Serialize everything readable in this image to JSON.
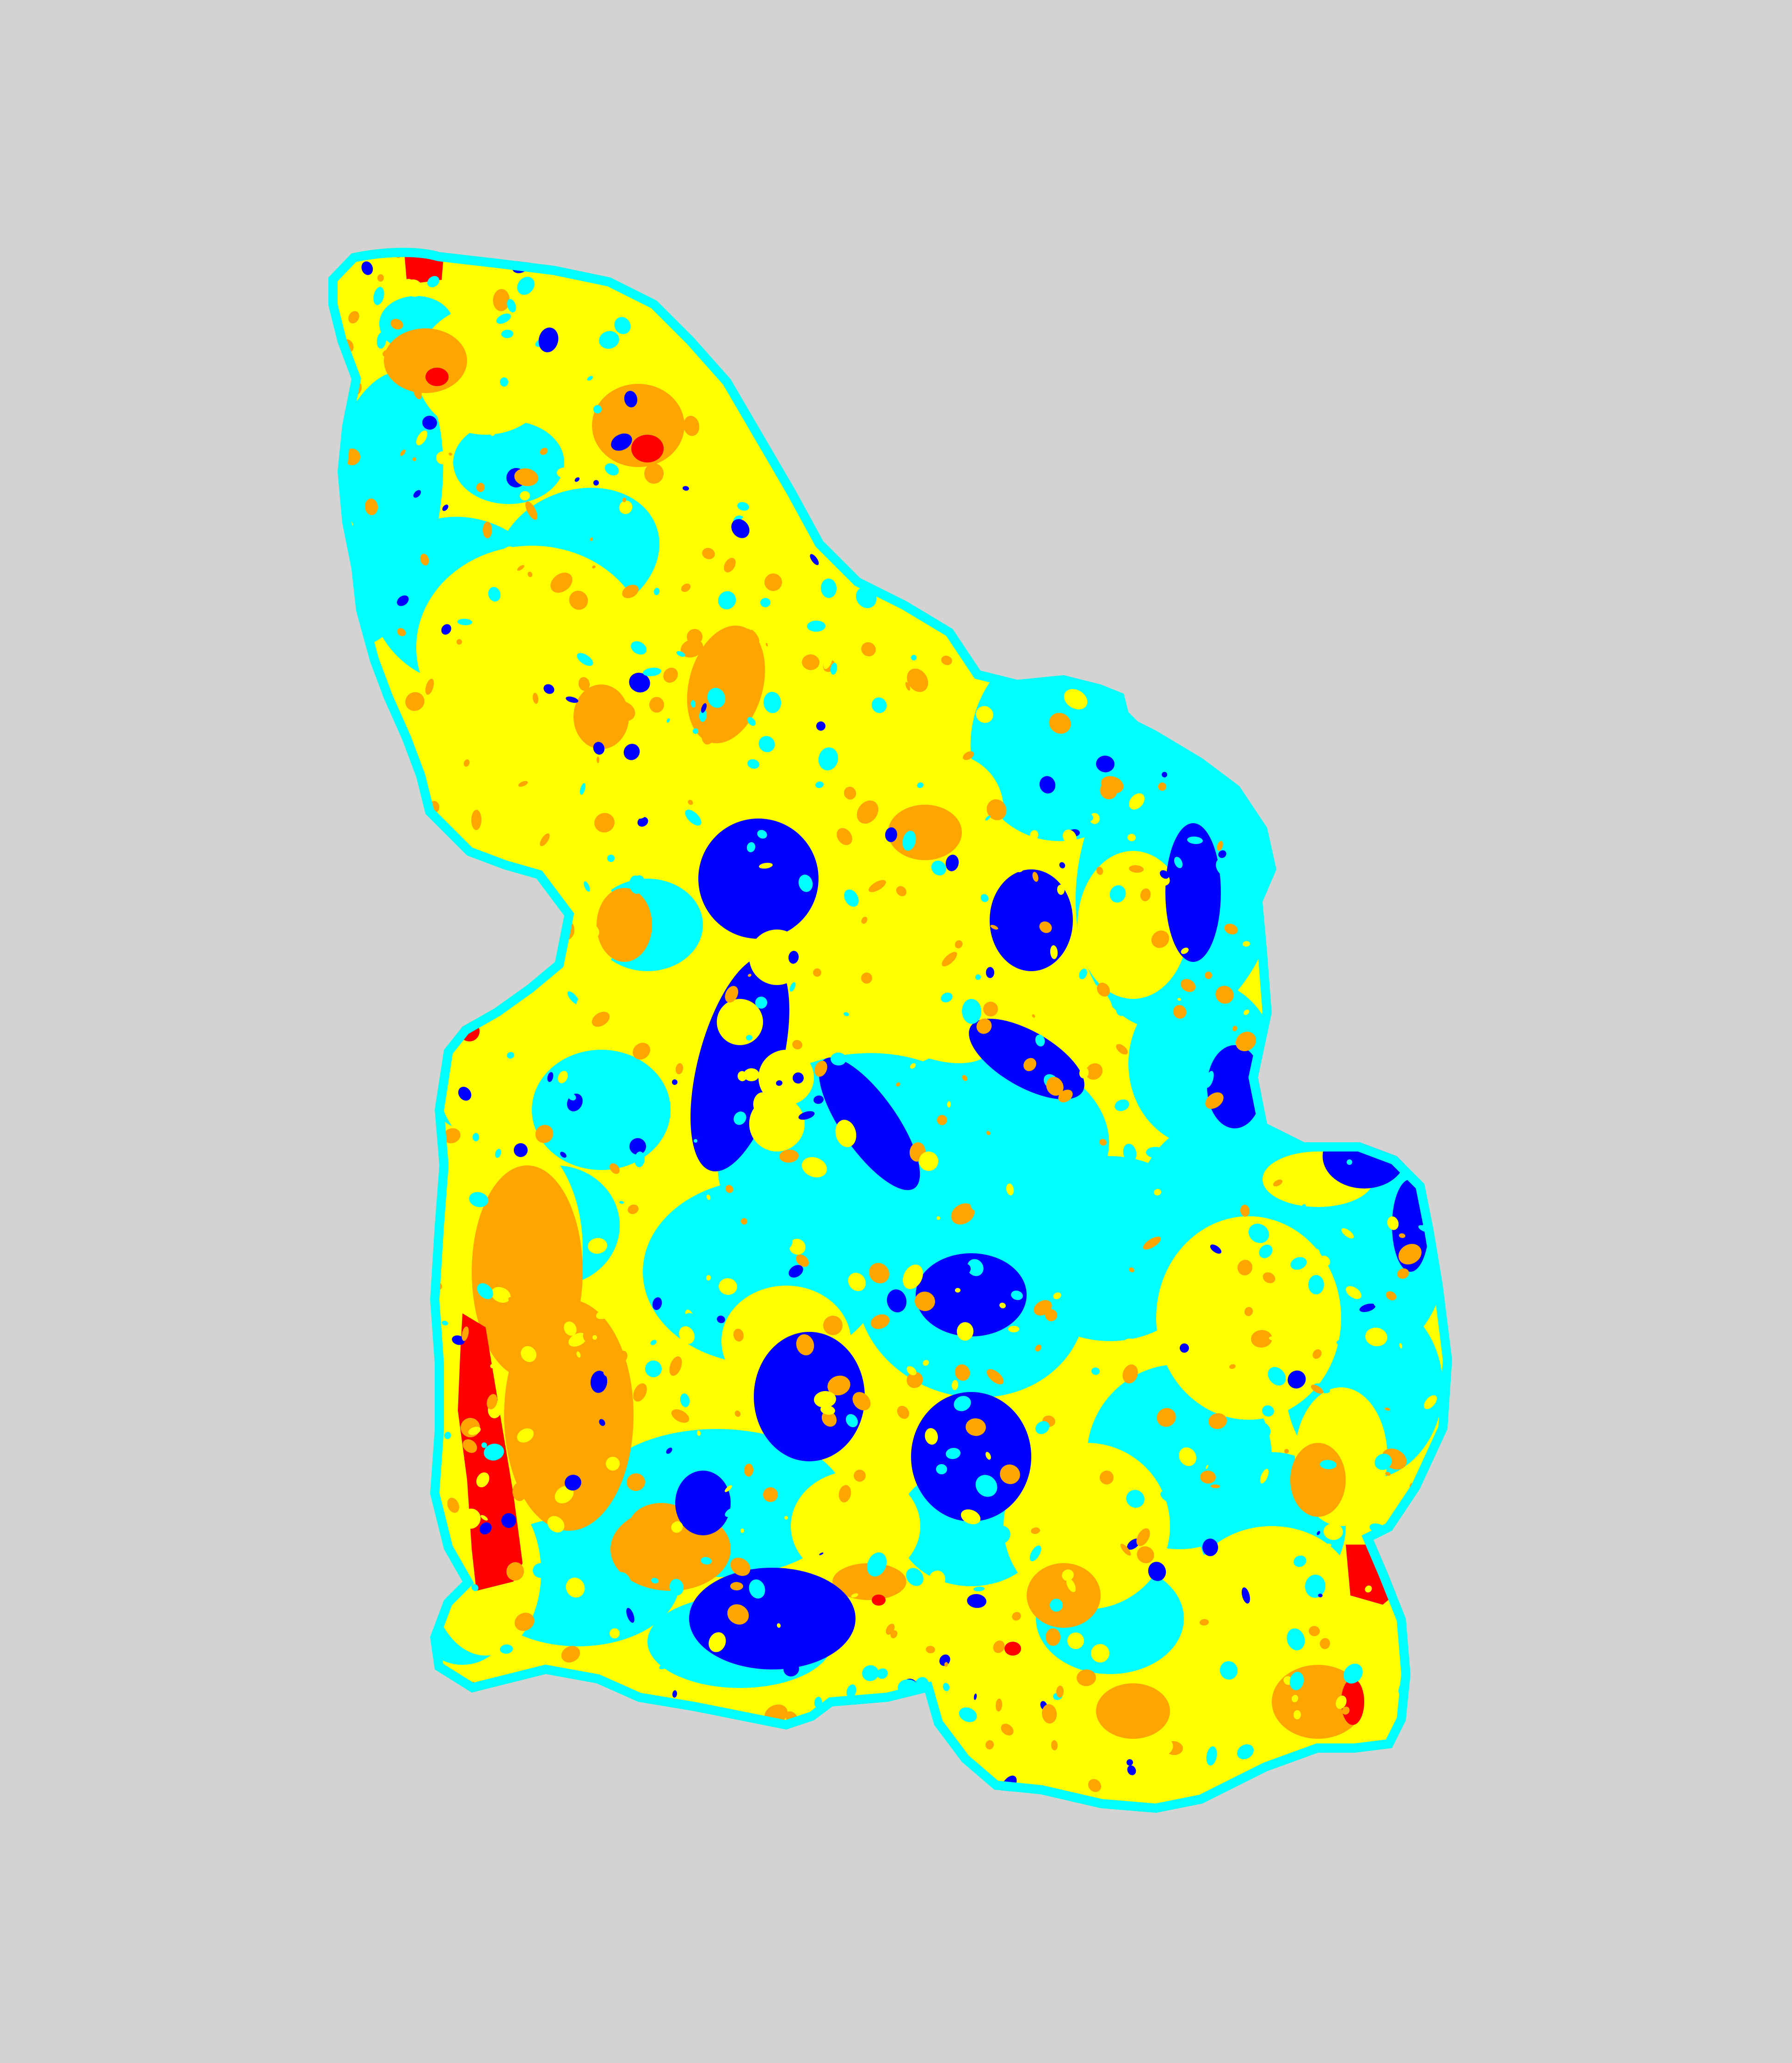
{
  "map": {
    "background_color": "#d3d3d3",
    "colors": {
      "class_very_low": "#0000ff",
      "class_low": "#00ffff",
      "class_moderate": "#ffff00",
      "class_high": "#ffa500",
      "class_very_high": "#ff0000"
    },
    "legend_visible": false,
    "title_visible": false
  }
}
